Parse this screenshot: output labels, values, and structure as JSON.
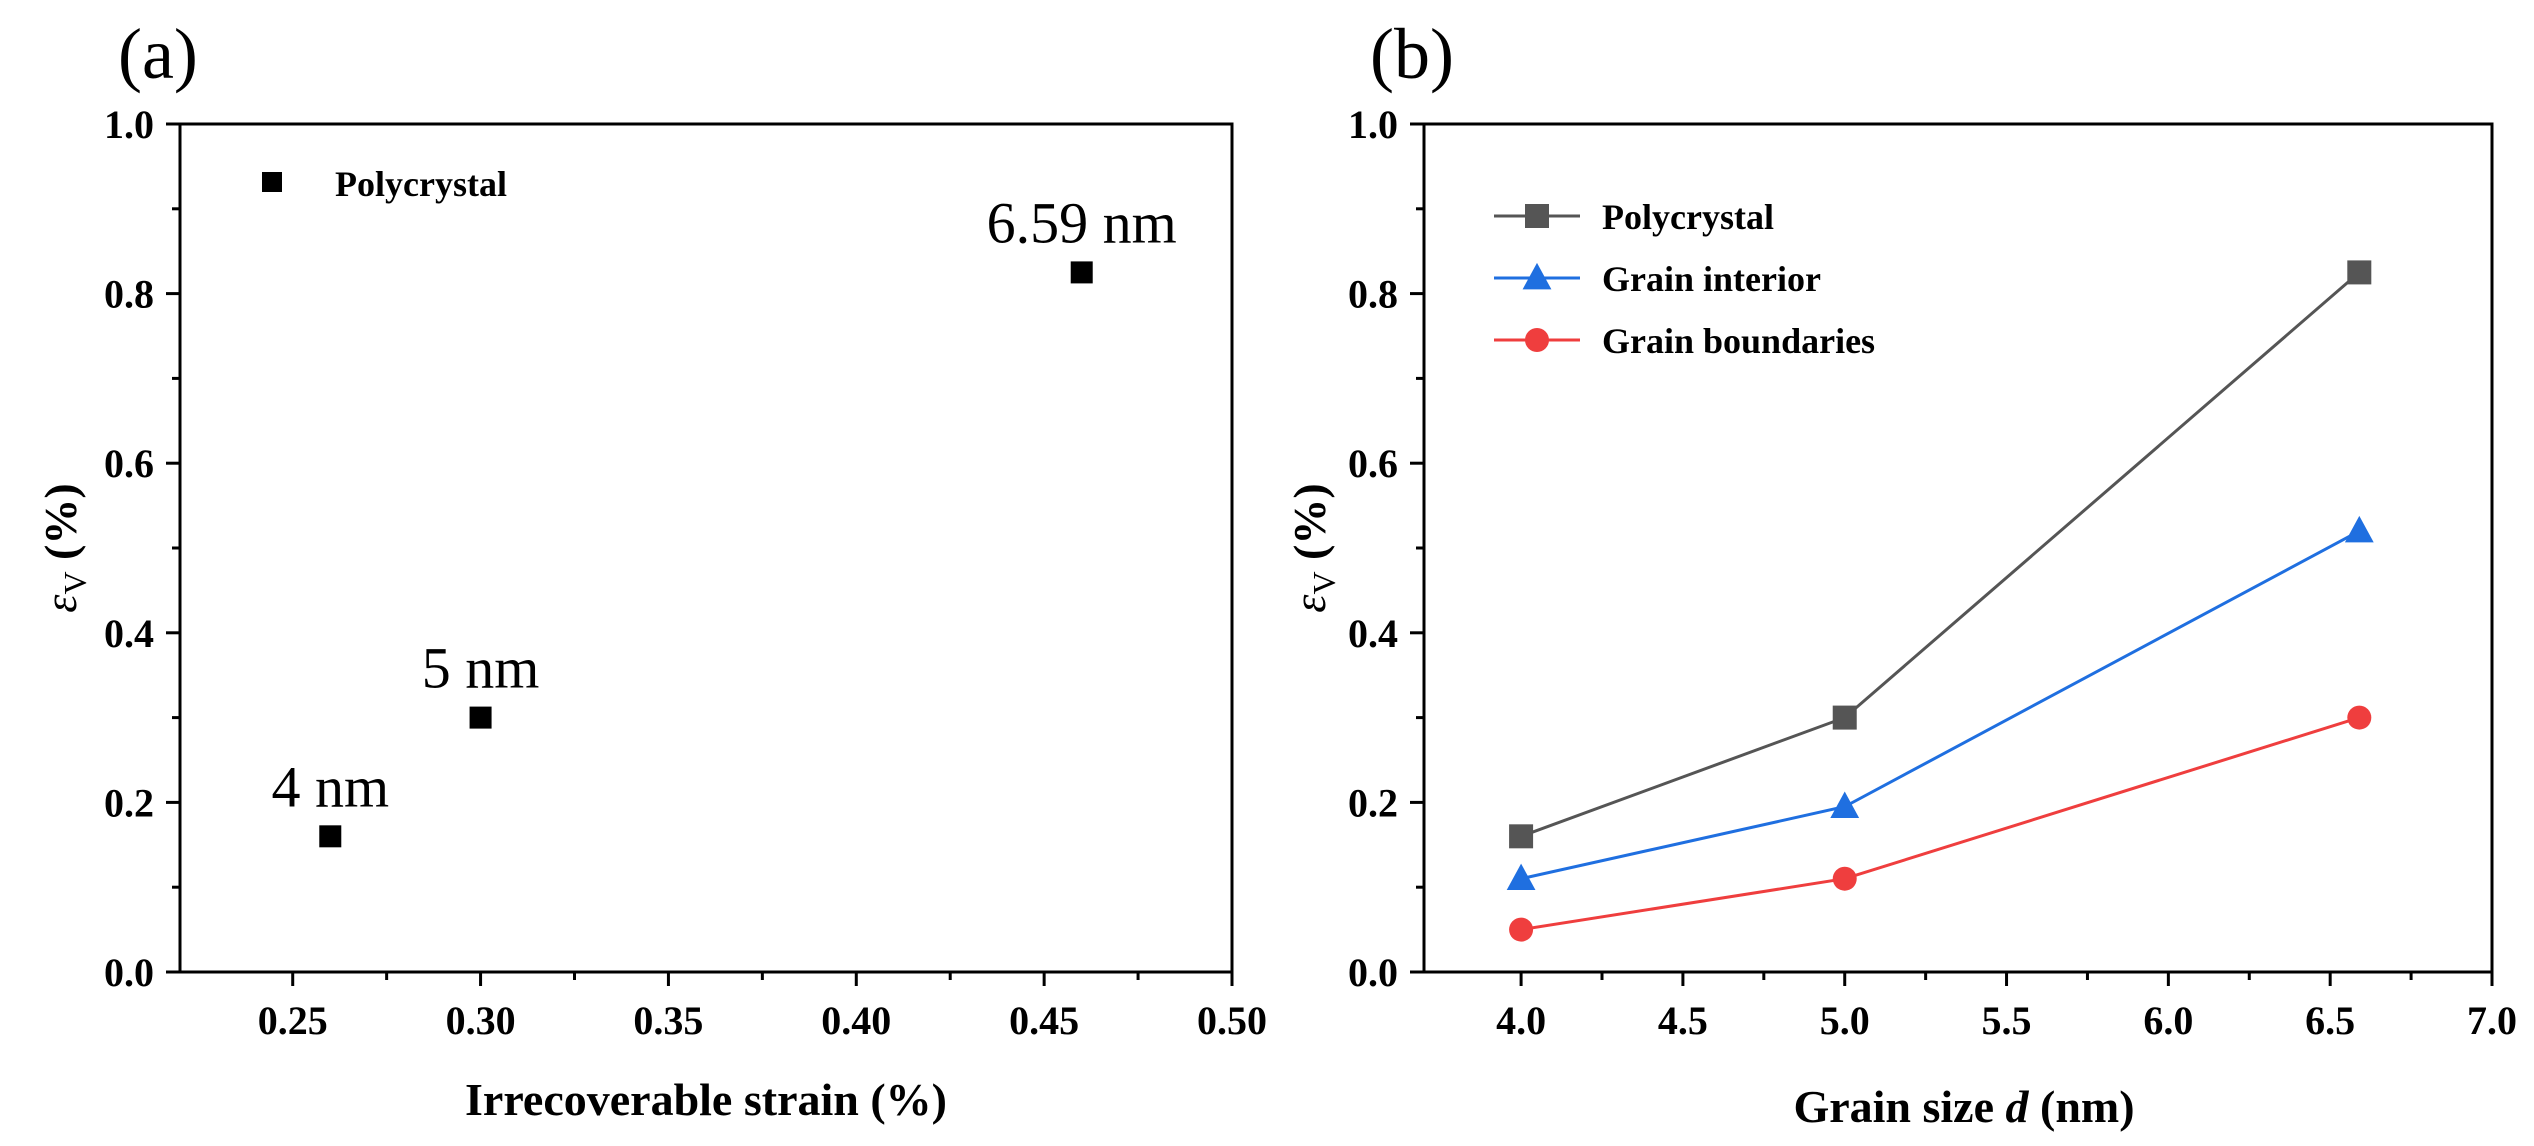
{
  "chart_data": [
    {
      "panel_label": "(a)",
      "type": "scatter",
      "xlabel": "Irrecoverable strain (%)",
      "ylabel_symbol": "ε",
      "ylabel_subscript": "V",
      "ylabel_unit": " (%)",
      "xlim": [
        0.22,
        0.5
      ],
      "ylim": [
        0.0,
        1.0
      ],
      "xticks": [
        0.25,
        0.3,
        0.35,
        0.4,
        0.45,
        0.5
      ],
      "xtick_labels": [
        "0.25",
        "0.30",
        "0.35",
        "0.40",
        "0.45",
        "0.50"
      ],
      "yticks": [
        0.0,
        0.2,
        0.4,
        0.6,
        0.8,
        1.0
      ],
      "ytick_labels": [
        "0.0",
        "0.2",
        "0.4",
        "0.6",
        "0.8",
        "1.0"
      ],
      "series": [
        {
          "name": "Polycrystal",
          "marker": "square",
          "color": "#000000",
          "x": [
            0.26,
            0.3,
            0.46
          ],
          "y": [
            0.16,
            0.3,
            0.825
          ]
        }
      ],
      "annotations": [
        {
          "text": "4 nm",
          "x": 0.26,
          "y": 0.16
        },
        {
          "text": "5 nm",
          "x": 0.3,
          "y": 0.3
        },
        {
          "text": "6.59 nm",
          "x": 0.46,
          "y": 0.825
        }
      ],
      "legend_position": "top-left"
    },
    {
      "panel_label": "(b)",
      "type": "line",
      "xlabel_prefix": "Grain size ",
      "xlabel_var": "d",
      "xlabel_suffix": " (nm)",
      "ylabel_symbol": "ε",
      "ylabel_subscript": "V",
      "ylabel_unit": " (%)",
      "xlim": [
        3.7,
        7.0
      ],
      "ylim": [
        0.0,
        1.0
      ],
      "xticks": [
        4.0,
        4.5,
        5.0,
        5.5,
        6.0,
        6.5,
        7.0
      ],
      "xtick_labels": [
        "4.0",
        "4.5",
        "5.0",
        "5.5",
        "6.0",
        "6.5",
        "7.0"
      ],
      "yticks": [
        0.0,
        0.2,
        0.4,
        0.6,
        0.8,
        1.0
      ],
      "ytick_labels": [
        "0.0",
        "0.2",
        "0.4",
        "0.6",
        "0.8",
        "1.0"
      ],
      "x": [
        4.0,
        5.0,
        6.59
      ],
      "series": [
        {
          "name": "Polycrystal",
          "marker": "square",
          "color": "#555555",
          "values": [
            0.16,
            0.3,
            0.825
          ]
        },
        {
          "name": "Grain interior",
          "marker": "triangle",
          "color": "#1f6fe0",
          "values": [
            0.11,
            0.195,
            0.52
          ]
        },
        {
          "name": "Grain boundaries",
          "marker": "circle",
          "color": "#ef3e3e",
          "values": [
            0.05,
            0.11,
            0.3
          ]
        }
      ],
      "legend_position": "top-left"
    }
  ]
}
